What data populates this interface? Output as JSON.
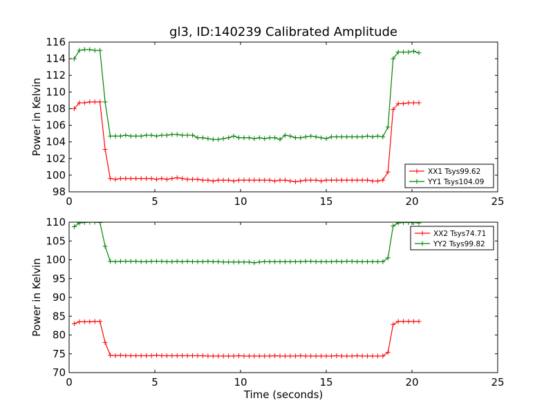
{
  "title": "gl3, ID:140239 Calibrated Amplitude",
  "chart_data": [
    {
      "type": "line",
      "ylabel": "Power in Kelvin",
      "xlabel": "",
      "xlim": [
        0,
        25
      ],
      "ylim": [
        98,
        116
      ],
      "xticks": [
        0,
        5,
        10,
        15,
        20,
        25
      ],
      "yticks": [
        98,
        100,
        102,
        104,
        106,
        108,
        110,
        112,
        114,
        116
      ],
      "legend": "lower-right",
      "grid": false,
      "series": [
        {
          "name": "XX1 Tsys99.62",
          "color": "#ff0000",
          "x": [
            0.3,
            0.6,
            0.9,
            1.2,
            1.5,
            1.8,
            2.1,
            2.4,
            2.7,
            3.0,
            3.3,
            3.6,
            3.9,
            4.2,
            4.5,
            4.8,
            5.1,
            5.4,
            5.7,
            6.0,
            6.3,
            6.6,
            6.9,
            7.2,
            7.5,
            7.8,
            8.1,
            8.4,
            8.7,
            9.0,
            9.3,
            9.6,
            9.9,
            10.2,
            10.5,
            10.8,
            11.1,
            11.4,
            11.7,
            12.0,
            12.3,
            12.6,
            12.9,
            13.2,
            13.5,
            13.8,
            14.1,
            14.4,
            14.7,
            15.0,
            15.3,
            15.6,
            15.9,
            16.2,
            16.5,
            16.8,
            17.1,
            17.4,
            17.7,
            18.0,
            18.3,
            18.6,
            18.9,
            19.2,
            19.5,
            19.8,
            20.1,
            20.4
          ],
          "y": [
            108.0,
            108.7,
            108.7,
            108.8,
            108.8,
            108.8,
            103.1,
            99.6,
            99.5,
            99.6,
            99.6,
            99.6,
            99.6,
            99.6,
            99.6,
            99.6,
            99.5,
            99.6,
            99.5,
            99.6,
            99.7,
            99.6,
            99.5,
            99.5,
            99.5,
            99.4,
            99.4,
            99.3,
            99.4,
            99.4,
            99.4,
            99.3,
            99.4,
            99.4,
            99.4,
            99.4,
            99.4,
            99.4,
            99.4,
            99.3,
            99.4,
            99.4,
            99.3,
            99.2,
            99.3,
            99.4,
            99.4,
            99.4,
            99.3,
            99.4,
            99.4,
            99.4,
            99.4,
            99.4,
            99.4,
            99.4,
            99.4,
            99.4,
            99.3,
            99.3,
            99.4,
            100.4,
            107.9,
            108.6,
            108.6,
            108.7,
            108.7,
            108.7
          ]
        },
        {
          "name": "YY1 Tsys104.09",
          "color": "#008000",
          "x": [
            0.3,
            0.6,
            0.9,
            1.2,
            1.5,
            1.8,
            2.1,
            2.4,
            2.7,
            3.0,
            3.3,
            3.6,
            3.9,
            4.2,
            4.5,
            4.8,
            5.1,
            5.4,
            5.7,
            6.0,
            6.3,
            6.6,
            6.9,
            7.2,
            7.5,
            7.8,
            8.1,
            8.4,
            8.7,
            9.0,
            9.3,
            9.6,
            9.9,
            10.2,
            10.5,
            10.8,
            11.1,
            11.4,
            11.7,
            12.0,
            12.3,
            12.6,
            12.9,
            13.2,
            13.5,
            13.8,
            14.1,
            14.4,
            14.7,
            15.0,
            15.3,
            15.6,
            15.9,
            16.2,
            16.5,
            16.8,
            17.1,
            17.4,
            17.7,
            18.0,
            18.3,
            18.6,
            18.9,
            19.2,
            19.5,
            19.8,
            20.1,
            20.4
          ],
          "y": [
            114.0,
            115.0,
            115.1,
            115.1,
            115.0,
            115.0,
            108.8,
            104.7,
            104.7,
            104.7,
            104.8,
            104.7,
            104.7,
            104.7,
            104.8,
            104.8,
            104.7,
            104.8,
            104.8,
            104.9,
            104.9,
            104.8,
            104.8,
            104.8,
            104.5,
            104.5,
            104.4,
            104.3,
            104.3,
            104.4,
            104.5,
            104.7,
            104.5,
            104.5,
            104.5,
            104.4,
            104.5,
            104.4,
            104.5,
            104.5,
            104.3,
            104.8,
            104.7,
            104.5,
            104.5,
            104.6,
            104.7,
            104.6,
            104.5,
            104.4,
            104.6,
            104.6,
            104.6,
            104.6,
            104.6,
            104.6,
            104.6,
            104.7,
            104.6,
            104.7,
            104.6,
            105.8,
            114.0,
            114.8,
            114.8,
            114.8,
            114.9,
            114.7
          ]
        }
      ]
    },
    {
      "type": "line",
      "ylabel": "Power in Kelvin",
      "xlabel": "Time (seconds)",
      "xlim": [
        0,
        25
      ],
      "ylim": [
        70,
        110
      ],
      "xticks": [
        0,
        5,
        10,
        15,
        20,
        25
      ],
      "yticks": [
        70,
        75,
        80,
        85,
        90,
        95,
        100,
        105,
        110
      ],
      "legend": "top-right",
      "grid": false,
      "series": [
        {
          "name": "XX2 Tsys74.71",
          "color": "#ff0000",
          "x": [
            0.3,
            0.6,
            0.9,
            1.2,
            1.5,
            1.8,
            2.1,
            2.4,
            2.7,
            3.0,
            3.3,
            3.6,
            3.9,
            4.2,
            4.5,
            4.8,
            5.1,
            5.4,
            5.7,
            6.0,
            6.3,
            6.6,
            6.9,
            7.2,
            7.5,
            7.8,
            8.1,
            8.4,
            8.7,
            9.0,
            9.3,
            9.6,
            9.9,
            10.2,
            10.5,
            10.8,
            11.1,
            11.4,
            11.7,
            12.0,
            12.3,
            12.6,
            12.9,
            13.2,
            13.5,
            13.8,
            14.1,
            14.4,
            14.7,
            15.0,
            15.3,
            15.6,
            15.9,
            16.2,
            16.5,
            16.8,
            17.1,
            17.4,
            17.7,
            18.0,
            18.3,
            18.6,
            18.9,
            19.2,
            19.5,
            19.8,
            20.1,
            20.4
          ],
          "y": [
            83.0,
            83.5,
            83.5,
            83.5,
            83.6,
            83.6,
            78.0,
            74.6,
            74.5,
            74.6,
            74.5,
            74.5,
            74.5,
            74.5,
            74.5,
            74.5,
            74.6,
            74.5,
            74.5,
            74.5,
            74.5,
            74.5,
            74.5,
            74.5,
            74.5,
            74.5,
            74.4,
            74.4,
            74.4,
            74.4,
            74.4,
            74.4,
            74.5,
            74.4,
            74.4,
            74.4,
            74.4,
            74.4,
            74.4,
            74.5,
            74.4,
            74.4,
            74.4,
            74.4,
            74.5,
            74.4,
            74.4,
            74.4,
            74.4,
            74.4,
            74.4,
            74.5,
            74.4,
            74.4,
            74.4,
            74.5,
            74.4,
            74.4,
            74.4,
            74.4,
            74.4,
            75.4,
            82.8,
            83.6,
            83.6,
            83.6,
            83.6,
            83.6
          ]
        },
        {
          "name": "YY2 Tsys99.82",
          "color": "#008000",
          "x": [
            0.3,
            0.6,
            0.9,
            1.2,
            1.5,
            1.8,
            2.1,
            2.4,
            2.7,
            3.0,
            3.3,
            3.6,
            3.9,
            4.2,
            4.5,
            4.8,
            5.1,
            5.4,
            5.7,
            6.0,
            6.3,
            6.6,
            6.9,
            7.2,
            7.5,
            7.8,
            8.1,
            8.4,
            8.7,
            9.0,
            9.3,
            9.6,
            9.9,
            10.2,
            10.5,
            10.8,
            11.1,
            11.4,
            11.7,
            12.0,
            12.3,
            12.6,
            12.9,
            13.2,
            13.5,
            13.8,
            14.1,
            14.4,
            14.7,
            15.0,
            15.3,
            15.6,
            15.9,
            16.2,
            16.5,
            16.8,
            17.1,
            17.4,
            17.7,
            18.0,
            18.3,
            18.6,
            18.9,
            19.2,
            19.5,
            19.8,
            20.1,
            20.4
          ],
          "y": [
            108.8,
            109.8,
            109.9,
            110.0,
            110.0,
            109.9,
            103.6,
            99.6,
            99.5,
            99.6,
            99.6,
            99.6,
            99.6,
            99.5,
            99.5,
            99.6,
            99.6,
            99.6,
            99.5,
            99.5,
            99.6,
            99.5,
            99.6,
            99.5,
            99.5,
            99.5,
            99.6,
            99.5,
            99.5,
            99.4,
            99.4,
            99.4,
            99.4,
            99.4,
            99.4,
            99.2,
            99.4,
            99.5,
            99.5,
            99.5,
            99.5,
            99.5,
            99.5,
            99.5,
            99.5,
            99.6,
            99.6,
            99.5,
            99.5,
            99.5,
            99.5,
            99.6,
            99.5,
            99.6,
            99.6,
            99.5,
            99.5,
            99.5,
            99.5,
            99.5,
            99.5,
            100.5,
            109.0,
            109.8,
            109.9,
            109.9,
            109.9,
            109.8
          ]
        }
      ]
    }
  ]
}
